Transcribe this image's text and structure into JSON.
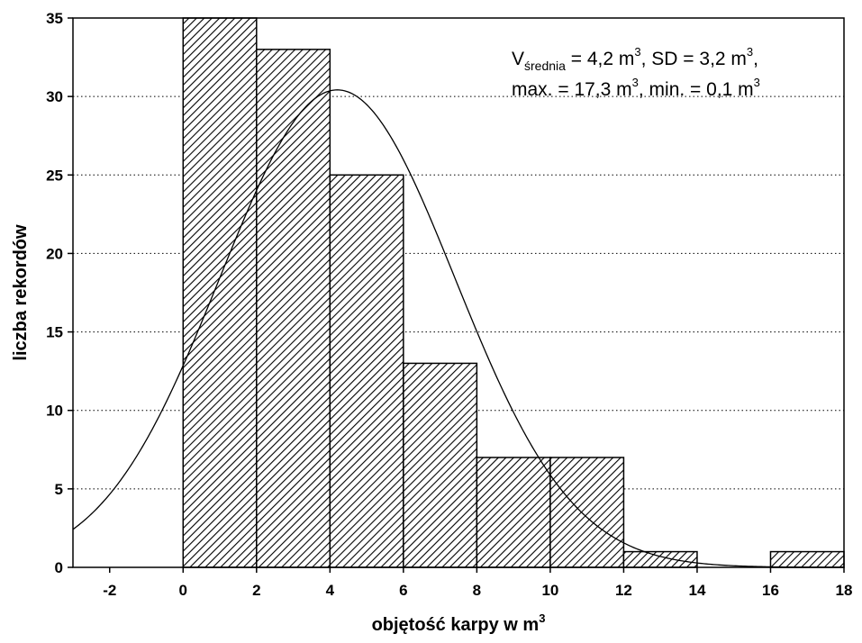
{
  "chart_data": {
    "type": "bar",
    "bins": [
      {
        "x0": 0,
        "x1": 2,
        "value": 35
      },
      {
        "x0": 2,
        "x1": 4,
        "value": 33
      },
      {
        "x0": 4,
        "x1": 6,
        "value": 25
      },
      {
        "x0": 6,
        "x1": 8,
        "value": 13
      },
      {
        "x0": 8,
        "x1": 10,
        "value": 7
      },
      {
        "x0": 10,
        "x1": 12,
        "value": 7
      },
      {
        "x0": 12,
        "x1": 14,
        "value": 1
      },
      {
        "x0": 14,
        "x1": 16,
        "value": 0
      },
      {
        "x0": 16,
        "x1": 18,
        "value": 1
      }
    ],
    "fitted_curve": {
      "type": "normal",
      "mean": 4.2,
      "sd": 3.2,
      "bin_width": 2,
      "n": 122
    },
    "xlim": [
      -3,
      18
    ],
    "ylim": [
      0,
      35
    ],
    "xticks": [
      "-2",
      "0",
      "2",
      "4",
      "6",
      "8",
      "10",
      "12",
      "14",
      "16",
      "18"
    ],
    "yticks": [
      "0",
      "5",
      "10",
      "15",
      "20",
      "25",
      "30",
      "35"
    ],
    "xlabel": "objętość karpy w m",
    "xlabel_sup": "3",
    "ylabel": "liczba rekordów",
    "grid": "horizontal-dotted",
    "annotation": {
      "line1": {
        "v": "V",
        "sub": "średnia",
        "t1": " = 4,2 m",
        "sup1": "3",
        "t2": ", SD = 3,2 m",
        "sup2": "3",
        "t3": ","
      },
      "line2": {
        "t1": "max. = 17,3 m",
        "sup1": "3",
        "t2": ", min. = 0,1 m",
        "sup2": "3"
      }
    }
  }
}
